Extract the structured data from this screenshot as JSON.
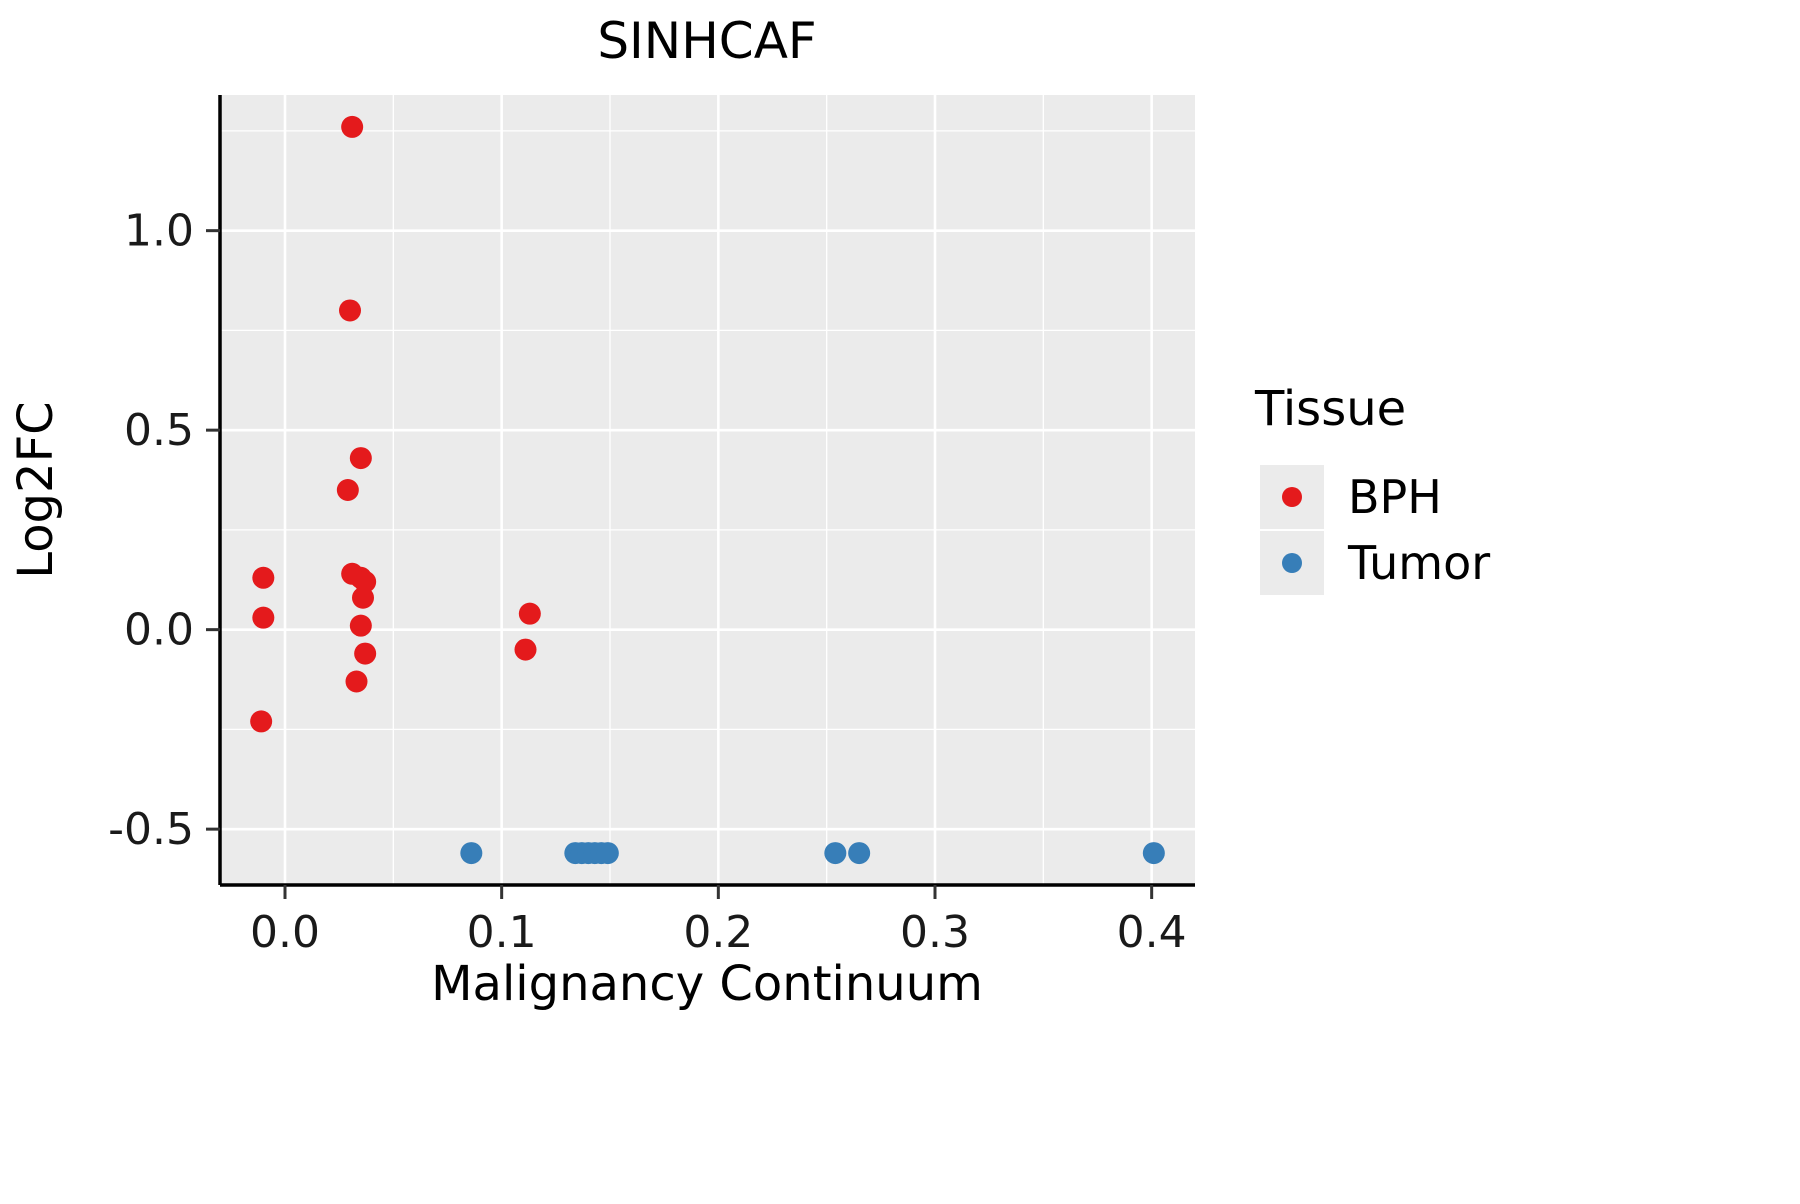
{
  "title": "SINHCAF",
  "legend": {
    "title": "Tissue",
    "items": [
      {
        "label": "BPH",
        "color": "#E41A1C"
      },
      {
        "label": "Tumor",
        "color": "#377EB8"
      }
    ]
  },
  "chart_data": {
    "type": "scatter",
    "title": "SINHCAF",
    "xlabel": "Malignancy Continuum",
    "ylabel": "Log2FC",
    "xlim": [
      -0.03,
      0.42
    ],
    "ylim": [
      -0.64,
      1.34
    ],
    "x_tick_values": [
      0.0,
      0.1,
      0.2,
      0.3,
      0.4
    ],
    "x_tick_labels": [
      "0.0",
      "0.1",
      "0.2",
      "0.3",
      "0.4"
    ],
    "y_tick_values": [
      -0.5,
      0.0,
      0.5,
      1.0
    ],
    "y_tick_labels": [
      "-0.5",
      "0.0",
      "0.5",
      "1.0"
    ],
    "grid": true,
    "panel_background": "#EBEBEB",
    "grid_color": "#FFFFFF",
    "legend_position": "right",
    "point_radius": 11,
    "series": [
      {
        "name": "BPH",
        "color": "#E41A1C",
        "points": [
          [
            -0.01,
            0.13
          ],
          [
            -0.01,
            0.03
          ],
          [
            -0.011,
            -0.23
          ],
          [
            0.031,
            1.26
          ],
          [
            0.03,
            0.8
          ],
          [
            0.035,
            0.43
          ],
          [
            0.029,
            0.35
          ],
          [
            0.031,
            0.14
          ],
          [
            0.035,
            0.13
          ],
          [
            0.037,
            0.12
          ],
          [
            0.036,
            0.08
          ],
          [
            0.035,
            0.01
          ],
          [
            0.037,
            -0.06
          ],
          [
            0.033,
            -0.13
          ],
          [
            0.113,
            0.04
          ],
          [
            0.111,
            -0.05
          ]
        ]
      },
      {
        "name": "Tumor",
        "color": "#377EB8",
        "points": [
          [
            0.086,
            -0.56
          ],
          [
            0.134,
            -0.56
          ],
          [
            0.137,
            -0.56
          ],
          [
            0.14,
            -0.56
          ],
          [
            0.143,
            -0.56
          ],
          [
            0.146,
            -0.56
          ],
          [
            0.149,
            -0.56
          ],
          [
            0.254,
            -0.56
          ],
          [
            0.265,
            -0.56
          ],
          [
            0.401,
            -0.56
          ]
        ]
      }
    ]
  }
}
